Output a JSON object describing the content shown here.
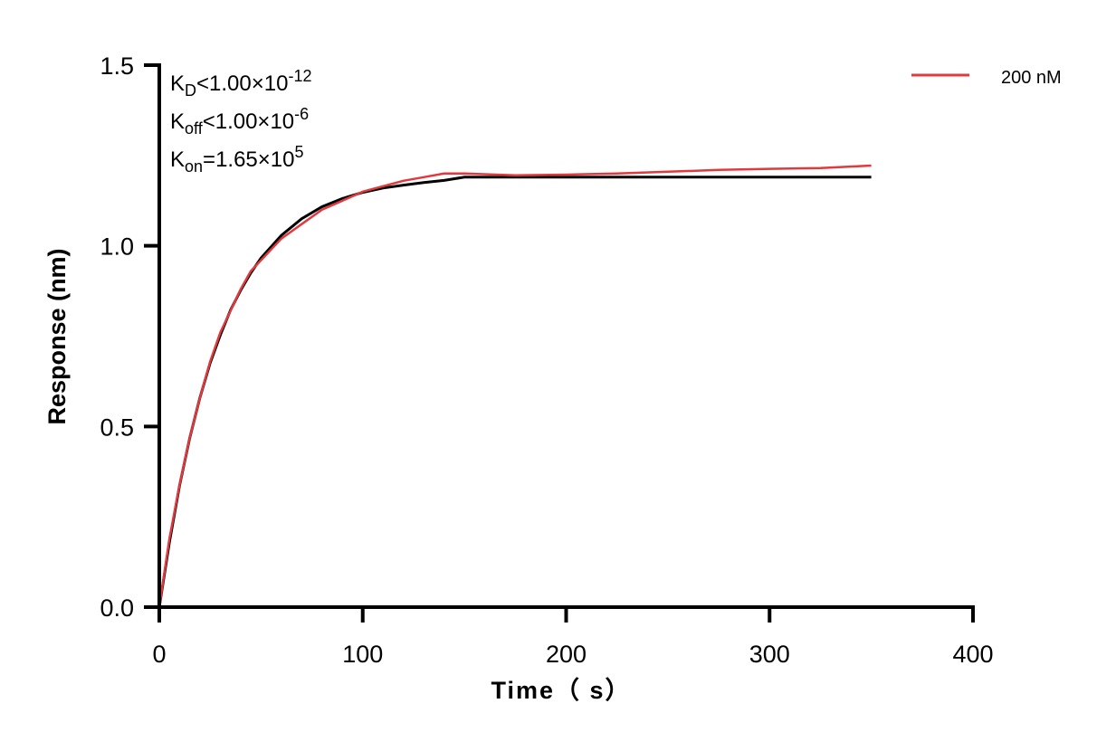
{
  "chart_data": {
    "type": "line",
    "xlabel": "Time（ s）",
    "ylabel": "Response (nm)",
    "xlim": [
      0,
      400
    ],
    "ylim": [
      0,
      1.5
    ],
    "xticks": [
      "0",
      "100",
      "200",
      "300",
      "400"
    ],
    "yticks": [
      "0.0",
      "0.5",
      "1.0",
      "1.5"
    ],
    "grid": false,
    "legend_position": "top-right",
    "annotations": {
      "kd": {
        "main": "K",
        "sub": "D",
        "rel": "<1.00×10",
        "exp": "-12"
      },
      "koff": {
        "main": "K",
        "sub": "off",
        "rel": "<1.00×10",
        "exp": "-6"
      },
      "kon": {
        "main": "K",
        "sub": "on",
        "rel": "=1.65×10",
        "exp": "5"
      }
    },
    "series": [
      {
        "name": "200 nM",
        "color": "#e0393e",
        "x": [
          0,
          5,
          10,
          15,
          20,
          25,
          30,
          35,
          40,
          45,
          50,
          60,
          70,
          80,
          90,
          100,
          110,
          120,
          130,
          140,
          150,
          175,
          200,
          225,
          250,
          275,
          300,
          325,
          350
        ],
        "y": [
          0,
          0.19,
          0.34,
          0.47,
          0.58,
          0.68,
          0.76,
          0.82,
          0.88,
          0.93,
          0.96,
          1.02,
          1.06,
          1.1,
          1.125,
          1.15,
          1.165,
          1.18,
          1.19,
          1.2,
          1.2,
          1.195,
          1.197,
          1.2,
          1.205,
          1.21,
          1.213,
          1.215,
          1.222
        ]
      },
      {
        "color": "#000000",
        "x": [
          0,
          5,
          10,
          15,
          20,
          25,
          30,
          35,
          40,
          45,
          50,
          60,
          70,
          80,
          90,
          100,
          110,
          120,
          130,
          140,
          150,
          200,
          250,
          300,
          350
        ],
        "y": [
          0,
          0.18,
          0.338,
          0.469,
          0.58,
          0.676,
          0.753,
          0.822,
          0.877,
          0.925,
          0.966,
          1.029,
          1.075,
          1.108,
          1.131,
          1.148,
          1.16,
          1.168,
          1.175,
          1.181,
          1.19,
          1.19,
          1.19,
          1.19,
          1.19
        ]
      }
    ]
  }
}
